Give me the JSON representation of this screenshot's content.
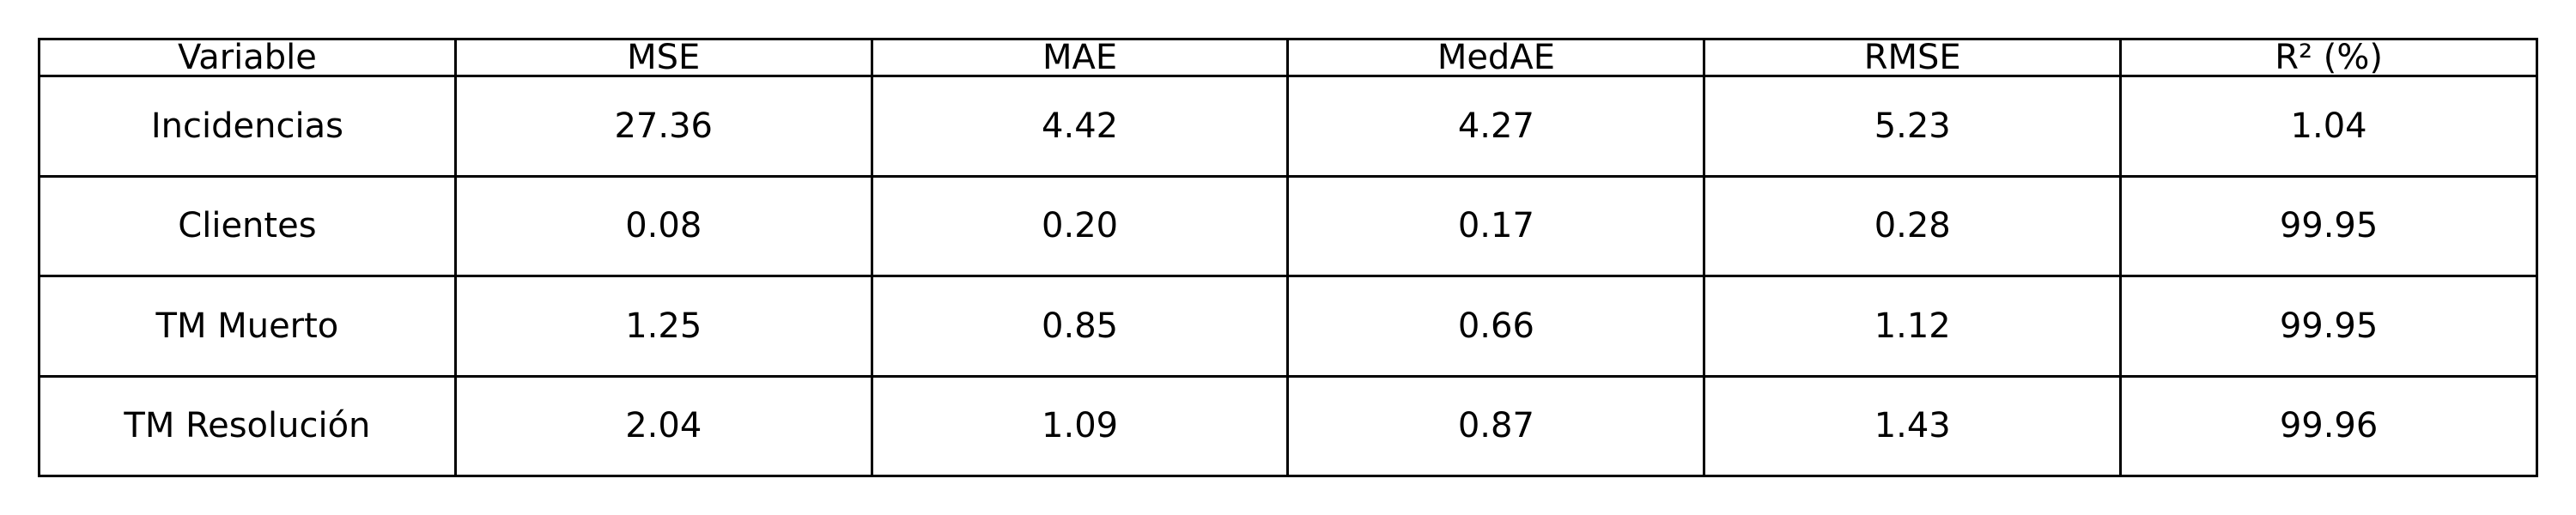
{
  "chart_data": {
    "type": "table",
    "columns": [
      "Variable",
      "MSE",
      "MAE",
      "MedAE",
      "RMSE",
      "R² (%)"
    ],
    "rows": [
      [
        "Incidencias",
        "27.36",
        "4.42",
        "4.27",
        "5.23",
        "1.04"
      ],
      [
        "Clientes",
        "0.08",
        "0.20",
        "0.17",
        "0.28",
        "99.95"
      ],
      [
        "TM Muerto",
        "1.25",
        "0.85",
        "0.66",
        "1.12",
        "99.95"
      ],
      [
        "TM Resolución",
        "2.04",
        "1.09",
        "0.87",
        "1.43",
        "99.96"
      ]
    ]
  }
}
